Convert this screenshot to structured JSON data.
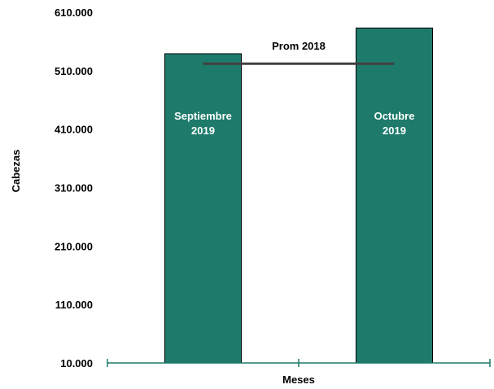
{
  "chart_data": {
    "type": "bar",
    "categories": [
      "Septiembre 2019",
      "Octubre 2019"
    ],
    "category_label_lines": [
      [
        "Septiembre",
        "2019"
      ],
      [
        "Octubre",
        "2019"
      ]
    ],
    "values": [
      539000,
      583000
    ],
    "xlabel": "Meses",
    "ylabel": "Cabezas",
    "ylim": [
      10000,
      610000
    ],
    "yticks": [
      10000,
      110000,
      210000,
      310000,
      410000,
      510000,
      610000
    ],
    "ytick_labels": [
      "10.000",
      "110.000",
      "210.000",
      "310.000",
      "410.000",
      "510.000",
      "610.000"
    ],
    "reference_line": {
      "label": "Prom 2018",
      "value": 522000
    },
    "grid": false,
    "legend": "none",
    "colors": {
      "bar": "#1e7b6b",
      "bar_outline": "#000000",
      "axis": "#1e7b6b",
      "reference_line": "#404040"
    }
  }
}
